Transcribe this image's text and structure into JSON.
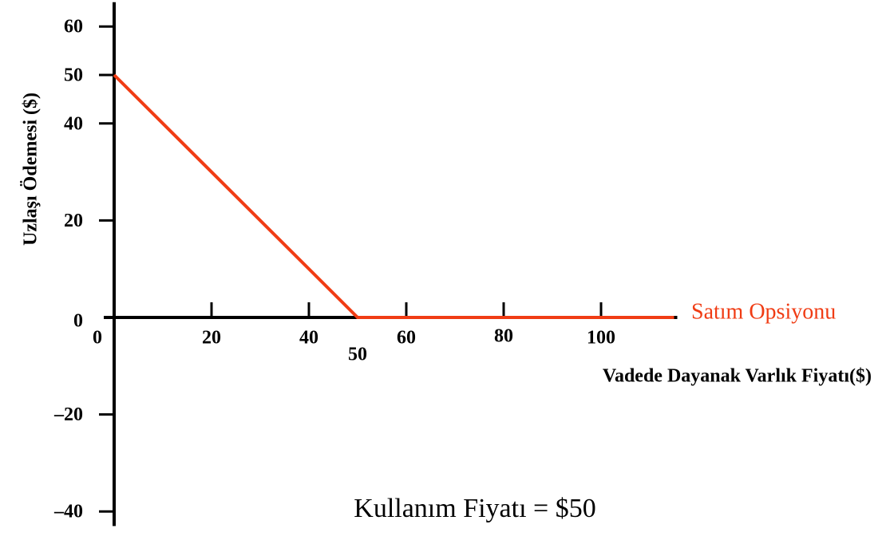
{
  "chart_data": {
    "type": "line",
    "x_label": "Vadede Dayanak Varlık Fiyatı($)",
    "y_label": "Uzlaşı Ödemesi ($)",
    "annotation": "Kullanım Fiyatı = $50",
    "x": [
      0,
      50,
      115
    ],
    "series": [
      {
        "name": "Satım Opsiyonu",
        "color": "#f03c14",
        "values": [
          50,
          0,
          0
        ]
      }
    ],
    "xlim": [
      0,
      115
    ],
    "ylim": [
      -43,
      65
    ],
    "xticks": [
      0,
      20,
      40,
      50,
      60,
      80,
      100
    ],
    "yticks": [
      60,
      50,
      40,
      20,
      0,
      {
        "value": -20,
        "label": "–20"
      },
      {
        "value": -40,
        "label": "–40"
      }
    ]
  }
}
